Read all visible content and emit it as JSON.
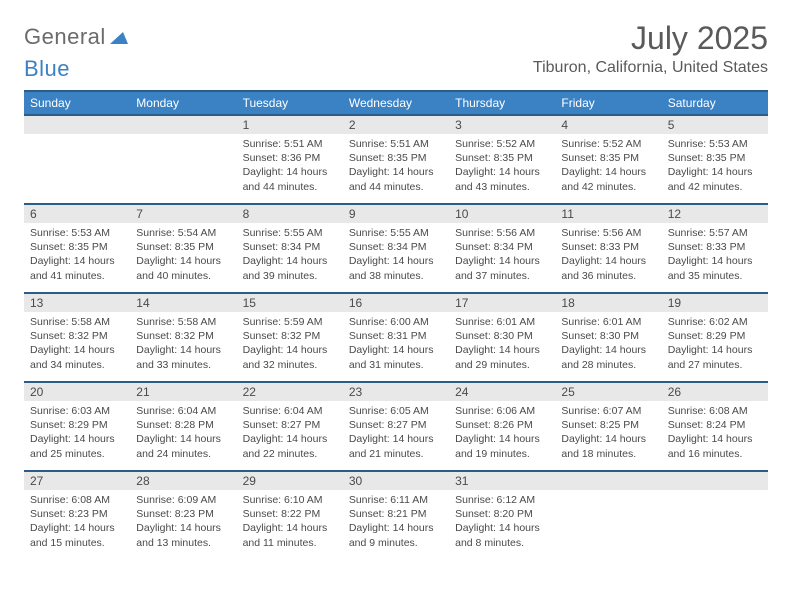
{
  "brand": {
    "part1": "General",
    "part2": "Blue"
  },
  "title": "July 2025",
  "location": "Tiburon, California, United States",
  "header_color": "#3b82c4",
  "header_border_color": "#2a5d8a",
  "daynum_bg": "#e8e8e8",
  "text_color": "#4a4a4a",
  "days": [
    "Sunday",
    "Monday",
    "Tuesday",
    "Wednesday",
    "Thursday",
    "Friday",
    "Saturday"
  ],
  "weeks": [
    [
      null,
      null,
      {
        "n": "1",
        "sr": "5:51 AM",
        "ss": "8:36 PM",
        "dl": "14 hours and 44 minutes."
      },
      {
        "n": "2",
        "sr": "5:51 AM",
        "ss": "8:35 PM",
        "dl": "14 hours and 44 minutes."
      },
      {
        "n": "3",
        "sr": "5:52 AM",
        "ss": "8:35 PM",
        "dl": "14 hours and 43 minutes."
      },
      {
        "n": "4",
        "sr": "5:52 AM",
        "ss": "8:35 PM",
        "dl": "14 hours and 42 minutes."
      },
      {
        "n": "5",
        "sr": "5:53 AM",
        "ss": "8:35 PM",
        "dl": "14 hours and 42 minutes."
      }
    ],
    [
      {
        "n": "6",
        "sr": "5:53 AM",
        "ss": "8:35 PM",
        "dl": "14 hours and 41 minutes."
      },
      {
        "n": "7",
        "sr": "5:54 AM",
        "ss": "8:35 PM",
        "dl": "14 hours and 40 minutes."
      },
      {
        "n": "8",
        "sr": "5:55 AM",
        "ss": "8:34 PM",
        "dl": "14 hours and 39 minutes."
      },
      {
        "n": "9",
        "sr": "5:55 AM",
        "ss": "8:34 PM",
        "dl": "14 hours and 38 minutes."
      },
      {
        "n": "10",
        "sr": "5:56 AM",
        "ss": "8:34 PM",
        "dl": "14 hours and 37 minutes."
      },
      {
        "n": "11",
        "sr": "5:56 AM",
        "ss": "8:33 PM",
        "dl": "14 hours and 36 minutes."
      },
      {
        "n": "12",
        "sr": "5:57 AM",
        "ss": "8:33 PM",
        "dl": "14 hours and 35 minutes."
      }
    ],
    [
      {
        "n": "13",
        "sr": "5:58 AM",
        "ss": "8:32 PM",
        "dl": "14 hours and 34 minutes."
      },
      {
        "n": "14",
        "sr": "5:58 AM",
        "ss": "8:32 PM",
        "dl": "14 hours and 33 minutes."
      },
      {
        "n": "15",
        "sr": "5:59 AM",
        "ss": "8:32 PM",
        "dl": "14 hours and 32 minutes."
      },
      {
        "n": "16",
        "sr": "6:00 AM",
        "ss": "8:31 PM",
        "dl": "14 hours and 31 minutes."
      },
      {
        "n": "17",
        "sr": "6:01 AM",
        "ss": "8:30 PM",
        "dl": "14 hours and 29 minutes."
      },
      {
        "n": "18",
        "sr": "6:01 AM",
        "ss": "8:30 PM",
        "dl": "14 hours and 28 minutes."
      },
      {
        "n": "19",
        "sr": "6:02 AM",
        "ss": "8:29 PM",
        "dl": "14 hours and 27 minutes."
      }
    ],
    [
      {
        "n": "20",
        "sr": "6:03 AM",
        "ss": "8:29 PM",
        "dl": "14 hours and 25 minutes."
      },
      {
        "n": "21",
        "sr": "6:04 AM",
        "ss": "8:28 PM",
        "dl": "14 hours and 24 minutes."
      },
      {
        "n": "22",
        "sr": "6:04 AM",
        "ss": "8:27 PM",
        "dl": "14 hours and 22 minutes."
      },
      {
        "n": "23",
        "sr": "6:05 AM",
        "ss": "8:27 PM",
        "dl": "14 hours and 21 minutes."
      },
      {
        "n": "24",
        "sr": "6:06 AM",
        "ss": "8:26 PM",
        "dl": "14 hours and 19 minutes."
      },
      {
        "n": "25",
        "sr": "6:07 AM",
        "ss": "8:25 PM",
        "dl": "14 hours and 18 minutes."
      },
      {
        "n": "26",
        "sr": "6:08 AM",
        "ss": "8:24 PM",
        "dl": "14 hours and 16 minutes."
      }
    ],
    [
      {
        "n": "27",
        "sr": "6:08 AM",
        "ss": "8:23 PM",
        "dl": "14 hours and 15 minutes."
      },
      {
        "n": "28",
        "sr": "6:09 AM",
        "ss": "8:23 PM",
        "dl": "14 hours and 13 minutes."
      },
      {
        "n": "29",
        "sr": "6:10 AM",
        "ss": "8:22 PM",
        "dl": "14 hours and 11 minutes."
      },
      {
        "n": "30",
        "sr": "6:11 AM",
        "ss": "8:21 PM",
        "dl": "14 hours and 9 minutes."
      },
      {
        "n": "31",
        "sr": "6:12 AM",
        "ss": "8:20 PM",
        "dl": "14 hours and 8 minutes."
      },
      null,
      null
    ]
  ],
  "labels": {
    "sunrise": "Sunrise:",
    "sunset": "Sunset:",
    "daylight": "Daylight:"
  }
}
